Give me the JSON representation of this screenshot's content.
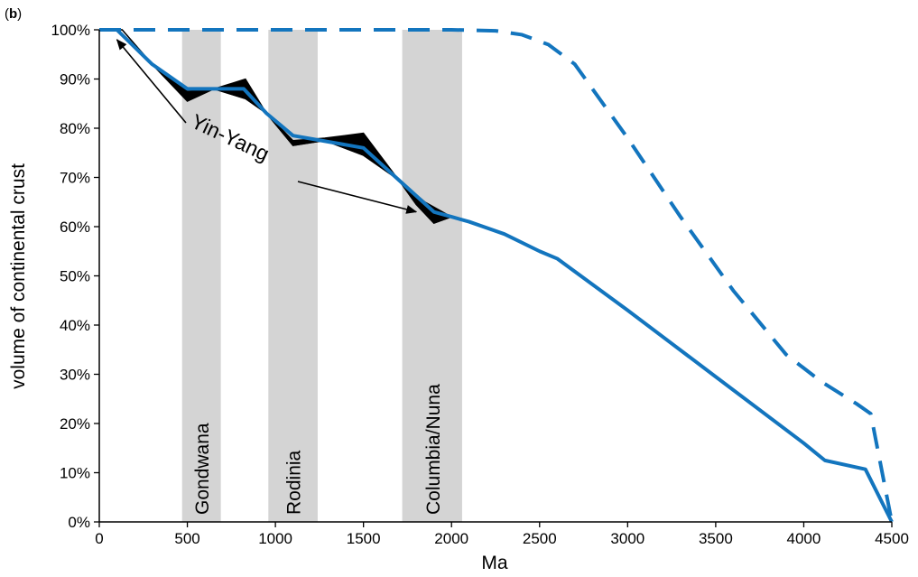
{
  "panel_label": {
    "open": "(",
    "letter": "b",
    "close": ")"
  },
  "chart_data": {
    "type": "line",
    "xlabel": "Ma",
    "ylabel": "volume of continental crust",
    "xlim": [
      0,
      4500
    ],
    "ylim": [
      0,
      100
    ],
    "x_ticks": [
      0,
      500,
      1000,
      1500,
      2000,
      2500,
      3000,
      3500,
      4000,
      4500
    ],
    "y_ticks": [
      0,
      10,
      20,
      30,
      40,
      50,
      60,
      70,
      80,
      90,
      100
    ],
    "y_tick_labels": [
      "0%",
      "10%",
      "20%",
      "30%",
      "40%",
      "50%",
      "60%",
      "70%",
      "80%",
      "90%",
      "100%"
    ],
    "grid": false,
    "colors": {
      "series": "#1375be",
      "bands": "#d4d4d4",
      "envelope": "#000000"
    },
    "supercontinent_bands": [
      {
        "label": "Gondwana",
        "x_from": 470,
        "x_to": 690
      },
      {
        "label": "Rodinia",
        "x_from": 960,
        "x_to": 1240
      },
      {
        "label": "Columbia/Nuna",
        "x_from": 1720,
        "x_to": 2060
      }
    ],
    "envelope_upper": {
      "x": [
        0,
        130,
        300,
        500,
        650,
        830,
        950,
        1100,
        1280,
        1500,
        1700,
        1850,
        2000
      ],
      "y": [
        100,
        100,
        93,
        87.5,
        88,
        90,
        83,
        77.5,
        78,
        79,
        69.5,
        65,
        62
      ]
    },
    "envelope_lower": {
      "x": [
        0,
        130,
        300,
        500,
        650,
        830,
        950,
        1100,
        1280,
        1500,
        1700,
        1800,
        1900,
        2000
      ],
      "y": [
        100,
        100,
        93,
        85.5,
        88,
        86,
        83,
        76.5,
        77.5,
        74.5,
        69.5,
        64.5,
        60.7,
        62
      ]
    },
    "series": [
      {
        "style": "solid",
        "x": [
          0,
          100,
          300,
          500,
          820,
          950,
          1100,
          1500,
          1700,
          1900,
          2000,
          2100,
          2300,
          2500,
          2600,
          3000,
          3500,
          4000,
          4120,
          4350,
          4500
        ],
        "y": [
          100,
          100,
          93,
          88,
          88,
          83,
          78.5,
          76,
          69.5,
          63,
          62,
          61,
          58.5,
          55,
          53.5,
          43,
          29.5,
          16,
          12.5,
          10.7,
          0
        ]
      },
      {
        "style": "dashed",
        "x": [
          0,
          500,
          1000,
          1500,
          2000,
          2250,
          2400,
          2550,
          2700,
          3000,
          3300,
          3600,
          3900,
          4100,
          4300,
          4380,
          4500
        ],
        "y": [
          100,
          100,
          100,
          100,
          100,
          99.8,
          99,
          97,
          93,
          78,
          62,
          47,
          34,
          28.5,
          24,
          22,
          0
        ]
      }
    ],
    "annotation": {
      "text": "Yin-Yang",
      "arrow_targets": [
        {
          "x": 100,
          "y": 98
        },
        {
          "x": 1800,
          "y": 63
        }
      ]
    }
  }
}
